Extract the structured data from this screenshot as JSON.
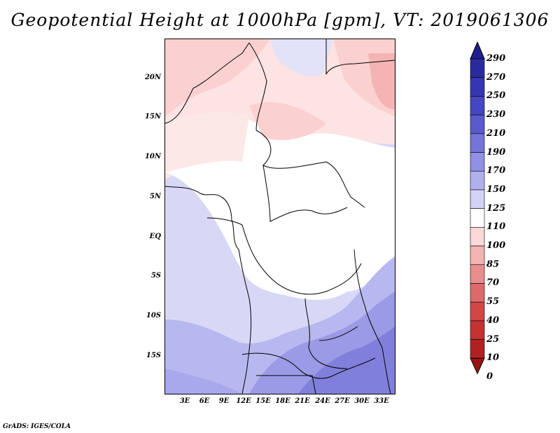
{
  "title": "Geopotential Height at 1000hPa [gpm], VT: 2019061306",
  "credit": "GrADS: IGES/COLA",
  "lat_labels": [
    "20N",
    "15N",
    "10N",
    "5N",
    "EQ",
    "5S",
    "10S",
    "15S"
  ],
  "lon_labels": [
    "3E",
    "6E",
    "9E",
    "12E",
    "15E",
    "18E",
    "21E",
    "24E",
    "27E",
    "30E",
    "33E"
  ],
  "colorbar": {
    "labels": [
      "290",
      "270",
      "250",
      "230",
      "210",
      "190",
      "170",
      "150",
      "125",
      "110",
      "100",
      "85",
      "70",
      "55",
      "40",
      "25",
      "10",
      "0"
    ],
    "colors": [
      "#1e1e8c",
      "#2a2aa0",
      "#3636b2",
      "#4646c2",
      "#5a5ace",
      "#7474da",
      "#9090e4",
      "#b0b0ee",
      "#d2d2f6",
      "#ffffff",
      "#fbd9d9",
      "#f4b4b4",
      "#e88c8c",
      "#dc6a6a",
      "#d24646",
      "#c43232",
      "#b02222",
      "#981414"
    ]
  }
}
